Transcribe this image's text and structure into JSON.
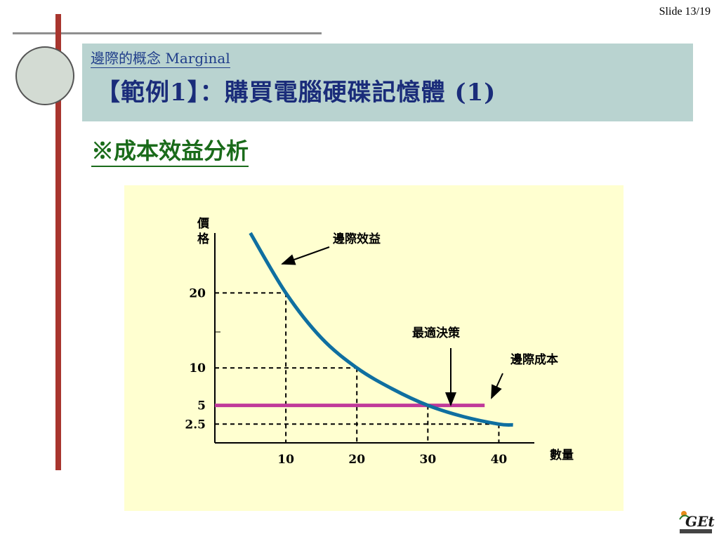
{
  "slide_number": "Slide 13/19",
  "subtitle": "邊際的概念 Marginal",
  "title": "【範例1】：購買電腦硬碟記憶體 (1)",
  "section_heading": "※成本效益分析",
  "colors": {
    "title_box": "#b9d3d0",
    "chart_background": "#ffffd0",
    "benefit_curve": "#0f6fa0",
    "cost_line": "#c0399a",
    "heading_green": "#1a6b1a",
    "title_blue": "#1a2c7a"
  },
  "logo_icon": "get-logo-icon",
  "chart_data": {
    "type": "line",
    "title": "",
    "ylabel": "價格",
    "xlabel": "數量",
    "xlim": [
      0,
      45
    ],
    "ylim": [
      0,
      28
    ],
    "x_ticks": [
      10,
      20,
      30,
      40
    ],
    "x_tick_labels": [
      "10",
      "20",
      "30",
      "40"
    ],
    "y_ticks": [
      2.5,
      5,
      10,
      20
    ],
    "y_tick_labels": [
      "2.5",
      "5",
      "10",
      "20"
    ],
    "grid": false,
    "series": [
      {
        "name": "邊際效益",
        "x": [
          5,
          10,
          15,
          20,
          25,
          30,
          35,
          40,
          42
        ],
        "y": [
          28,
          20,
          14,
          10,
          7.2,
          5,
          3.5,
          2.5,
          2.4
        ]
      },
      {
        "name": "邊際成本",
        "x": [
          0,
          38
        ],
        "y": [
          5,
          5
        ]
      }
    ],
    "annotations": [
      {
        "text": "最適決策",
        "x": 30,
        "y": 5
      }
    ],
    "reference_lines": [
      {
        "x": 10,
        "y": 20
      },
      {
        "x": 20,
        "y": 10
      },
      {
        "x": 30,
        "y": 5
      },
      {
        "x": 40,
        "y": 2.5
      }
    ]
  }
}
